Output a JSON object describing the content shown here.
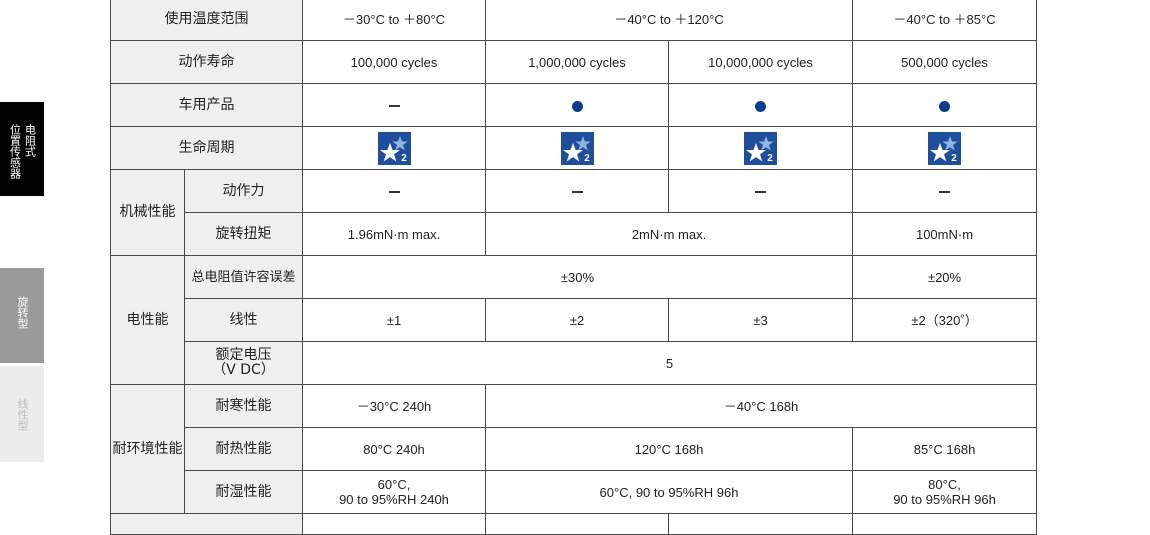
{
  "side_tabs": {
    "active": [
      "电阻式",
      "位置传感器"
    ],
    "rotary": "旋转型",
    "linear": "线性型"
  },
  "table": {
    "temp_range": {
      "label": "使用温度范围",
      "v1": "－30°C to ＋80°C",
      "v2": "－40°C to ＋120°C",
      "v3": "－40°C to ＋85°C"
    },
    "life": {
      "label": "动作寿命",
      "v1": "100,000 cycles",
      "v2": "1,000,000 cycles",
      "v3": "10,000,000 cycles",
      "v4": "500,000 cycles"
    },
    "automotive": {
      "label": "车用产品"
    },
    "lifecycle": {
      "label": "生命周期",
      "icon_num": "2"
    },
    "mechanical": {
      "group": "机械性能",
      "force_label": "动作力",
      "torque_label": "旋转扭矩",
      "torque_v1": "1.96mN·m max.",
      "torque_v2": "2mN·m max.",
      "torque_v3": "100mN·m"
    },
    "electrical": {
      "group": "电性能",
      "tolerance_label": "总电阻值许容误差",
      "tolerance_v1": "±30%",
      "tolerance_v2": "±20%",
      "linearity_label": "线性",
      "lin_v1": "±1",
      "lin_v2": "±2",
      "lin_v3": "±3",
      "lin_v4": "±2（320˚）",
      "voltage_label_1": "额定电压",
      "voltage_label_2": "（V DC）",
      "voltage_v": "5"
    },
    "environmental": {
      "group": "耐环境性能",
      "cold_label": "耐寒性能",
      "cold_v1": "－30°C 240h",
      "cold_v2": "－40°C 168h",
      "heat_label": "耐热性能",
      "heat_v1": "80°C 240h",
      "heat_v2": "120°C 168h",
      "heat_v3": "85°C 168h",
      "humid_label": "耐湿性能",
      "humid_v1a": "60°C,",
      "humid_v1b": "90 to 95%RH 240h",
      "humid_v2": "60°C, 90 to 95%RH 96h",
      "humid_v3a": "80°C,",
      "humid_v3b": "90 to 95%RH 96h"
    }
  }
}
